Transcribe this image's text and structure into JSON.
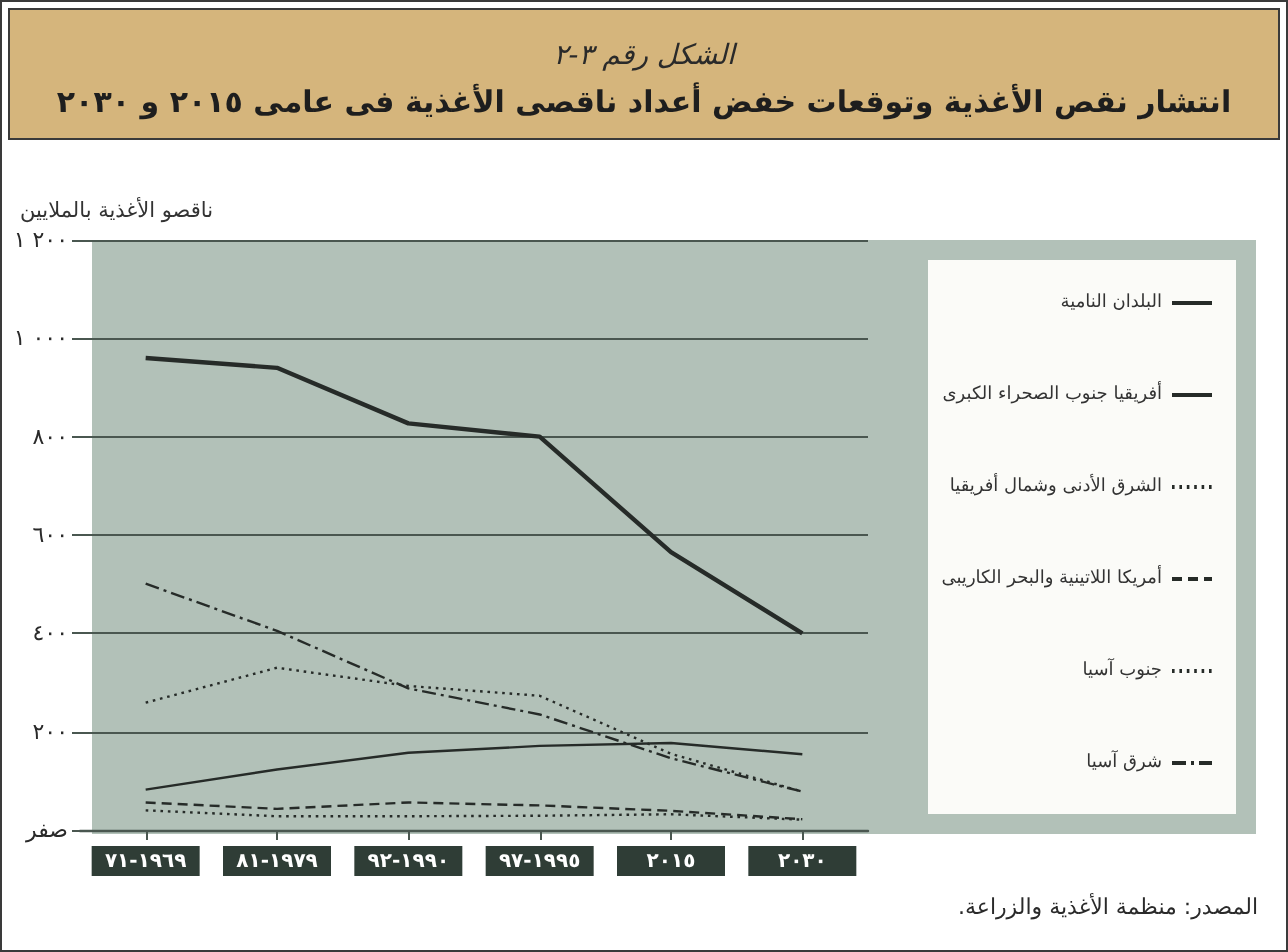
{
  "chart_data": {
    "type": "line",
    "title": "انتشار نقص الأغذية وتوقعات خفض أعداد ناقصى الأغذية فى عامى ٢٠١٥ و ٢٠٣٠",
    "subtitle": "الشكل رقم ٣-٢",
    "ylabel": "ناقصو الأغذية بالملايين",
    "annotations": [
      "المصدر: منظمة الأغذية والزراعة."
    ],
    "categories": [
      "١٩٦٩-٧١",
      "١٩٧٩-٨١",
      "١٩٩٠-٩٢",
      "١٩٩٥-٩٧",
      "٢٠١٥",
      "٢٠٣٠"
    ],
    "series": [
      {
        "name": "البلدان النامية",
        "color": "#262b28",
        "line_style": "solid",
        "values": [
          960,
          940,
          827,
          800,
          565,
          400
        ]
      },
      {
        "name": "أفريقيا جنوب الصحراء الكبرى",
        "color": "#262b28",
        "line_style": "solid",
        "values": [
          82,
          123,
          157,
          171,
          177,
          154
        ]
      },
      {
        "name": "الشرق الأدنى وشمال أفريقيا",
        "color": "#262b28",
        "line_style": "dotted",
        "values": [
          40,
          28,
          28,
          29,
          32,
          21
        ]
      },
      {
        "name": "أمريكا اللاتينية والبحر الكاريبى",
        "color": "#262b28",
        "line_style": "dashed",
        "values": [
          56,
          43,
          56,
          50,
          39,
          22
        ]
      },
      {
        "name": "جنوب آسيا",
        "color": "#262b28",
        "line_style": "dotted",
        "values": [
          259,
          330,
          293,
          273,
          155,
          78
        ]
      },
      {
        "name": "شرق آسيا",
        "color": "#262b28",
        "line_style": "dashdot",
        "values": [
          501,
          405,
          288,
          235,
          146,
          78
        ]
      }
    ],
    "ylim": [
      0,
      1200
    ],
    "yticks": [
      {
        "value": 0,
        "label": "صفر"
      },
      {
        "value": 200,
        "label": "٢٠٠"
      },
      {
        "value": 400,
        "label": "٤٠٠"
      },
      {
        "value": 600,
        "label": "٦٠٠"
      },
      {
        "value": 800,
        "label": "٨٠٠"
      },
      {
        "value": 1000,
        "label": "١ ٠٠٠"
      },
      {
        "value": 1200,
        "label": "١ ٢٠٠"
      }
    ],
    "grid": "y",
    "legend": "right",
    "marker": "none"
  }
}
